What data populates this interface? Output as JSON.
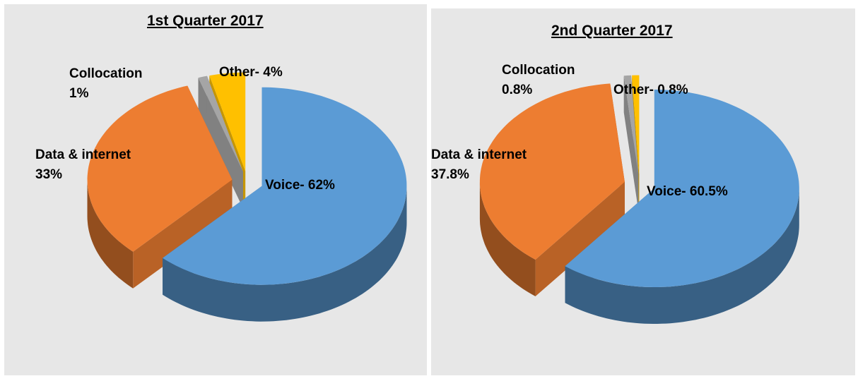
{
  "chart_data": [
    {
      "type": "pie",
      "title": "1st Quarter 2017",
      "values": [
        62,
        33,
        1,
        4
      ],
      "value_labels": [
        "Voice- 62%",
        "Data & internet\n33%",
        "Collocation\n1%",
        "Other- 4%"
      ],
      "colors": [
        "#5b9bd5",
        "#ed7d31",
        "#a5a5a5",
        "#ffc000"
      ]
    },
    {
      "type": "pie",
      "title": "2nd Quarter 2017",
      "values": [
        60.5,
        37.8,
        0.8,
        0.8
      ],
      "value_labels": [
        "Voice- 60.5%",
        "Data & internet\n37.8%",
        "Collocation\n0.8%",
        "Other- 0.8%"
      ],
      "colors": [
        "#5b9bd5",
        "#ed7d31",
        "#a5a5a5",
        "#ffc000"
      ]
    }
  ]
}
